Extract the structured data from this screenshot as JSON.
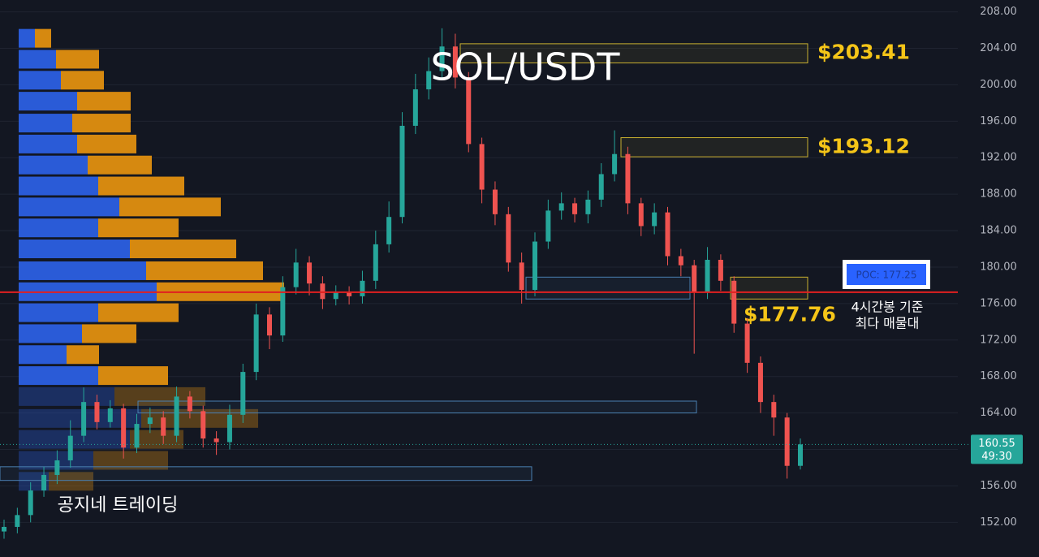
{
  "chart_data": {
    "type": "candlestick",
    "title": "SOL/USDT",
    "watermark": "공지네 트레이딩",
    "ylim": [
      148.2,
      209.3
    ],
    "yticks": [
      {
        "value": 152,
        "label": "152.00"
      },
      {
        "value": 156,
        "label": "156.00"
      },
      {
        "value": 160,
        "label": "160.00"
      },
      {
        "value": 164,
        "label": "164.00"
      },
      {
        "value": 168,
        "label": "168.00"
      },
      {
        "value": 172,
        "label": "172.00"
      },
      {
        "value": 176,
        "label": "176.00"
      },
      {
        "value": 180,
        "label": "180.00"
      },
      {
        "value": 184,
        "label": "184.00"
      },
      {
        "value": 188,
        "label": "188.00"
      },
      {
        "value": 192,
        "label": "192.00"
      },
      {
        "value": 196,
        "label": "196.00"
      },
      {
        "value": 200,
        "label": "200.00"
      },
      {
        "value": 204,
        "label": "204.00"
      },
      {
        "value": 208,
        "label": "208.00"
      }
    ],
    "grid": true,
    "up_color": "#26a69a",
    "down_color": "#ef5350",
    "open": [
      151.0,
      151.5,
      152.8,
      155.5,
      157.2,
      158.8,
      161.5,
      165.2,
      163.0,
      164.5,
      160.2,
      162.8,
      163.5,
      161.5,
      165.8,
      164.2,
      161.2,
      160.8,
      163.8,
      168.5,
      174.8,
      172.5,
      177.8,
      180.5,
      178.2,
      176.5,
      177.2,
      176.8,
      178.5,
      182.5,
      185.5,
      195.5,
      199.5,
      201.5,
      204.2,
      200.8,
      193.5,
      188.5,
      185.8,
      180.5,
      177.5,
      182.8,
      186.2,
      187.0,
      185.8,
      187.4,
      190.2,
      192.4,
      187.0,
      184.5,
      186.0,
      181.2,
      180.2,
      177.2,
      180.8,
      178.5,
      173.8,
      169.5,
      165.2,
      163.5,
      158.2
    ],
    "high": [
      152.3,
      153.6,
      156.4,
      158.1,
      159.9,
      163.2,
      166.8,
      166.0,
      165.4,
      165.0,
      163.9,
      164.6,
      164.2,
      166.9,
      166.4,
      164.8,
      162.0,
      164.9,
      169.4,
      176.0,
      175.6,
      179.0,
      182.0,
      181.2,
      179.0,
      178.0,
      177.9,
      179.6,
      184.0,
      187.2,
      197.0,
      201.2,
      203.0,
      206.2,
      205.6,
      201.4,
      194.2,
      189.4,
      186.6,
      181.6,
      183.8,
      187.4,
      188.2,
      187.6,
      188.4,
      191.4,
      195.0,
      193.2,
      187.6,
      187.0,
      186.6,
      182.0,
      180.8,
      182.2,
      181.4,
      179.0,
      174.4,
      170.2,
      166.0,
      164.0,
      161.2
    ],
    "low": [
      150.2,
      150.8,
      152.0,
      154.8,
      156.2,
      158.0,
      160.8,
      162.2,
      162.4,
      159.0,
      159.6,
      161.8,
      160.6,
      160.8,
      163.4,
      160.2,
      159.4,
      160.0,
      162.9,
      167.6,
      171.0,
      171.8,
      177.0,
      176.9,
      175.4,
      175.8,
      175.9,
      176.0,
      177.6,
      181.6,
      184.8,
      194.6,
      198.4,
      200.8,
      199.6,
      192.6,
      187.0,
      184.6,
      179.5,
      176.0,
      176.8,
      182.0,
      185.2,
      184.9,
      184.8,
      186.6,
      189.4,
      185.8,
      183.4,
      183.6,
      180.2,
      179.0,
      170.5,
      176.5,
      177.4,
      172.8,
      168.4,
      164.0,
      161.5,
      156.8,
      157.8
    ],
    "close": [
      151.5,
      152.8,
      155.5,
      157.2,
      158.8,
      161.5,
      165.2,
      163.0,
      164.5,
      160.2,
      162.8,
      163.5,
      161.5,
      165.8,
      164.2,
      161.2,
      160.8,
      163.8,
      168.5,
      174.8,
      172.5,
      177.8,
      180.5,
      178.2,
      176.5,
      177.2,
      176.8,
      178.5,
      182.5,
      185.5,
      195.5,
      199.5,
      201.5,
      204.2,
      200.8,
      193.5,
      188.5,
      185.8,
      180.5,
      177.5,
      182.8,
      186.2,
      187.0,
      185.8,
      187.4,
      190.2,
      192.4,
      187.0,
      184.5,
      186.0,
      181.2,
      180.2,
      177.2,
      180.8,
      178.5,
      173.8,
      169.5,
      165.2,
      163.5,
      158.2,
      160.55
    ],
    "volume_profile": {
      "levels": [
        205.1,
        202.8,
        200.5,
        198.2,
        195.8,
        193.5,
        191.2,
        188.9,
        186.6,
        184.3,
        182.0,
        179.6,
        177.3,
        175.0,
        172.7,
        170.4,
        168.1,
        165.8,
        163.4,
        161.1,
        158.8,
        156.5
      ],
      "buy": [
        20,
        46,
        52,
        72,
        66,
        72,
        85,
        98,
        124,
        98,
        137,
        157,
        170,
        98,
        78,
        59,
        98,
        118,
        151,
        137,
        92,
        37
      ],
      "sell": [
        20,
        53,
        53,
        66,
        72,
        73,
        79,
        106,
        125,
        99,
        131,
        144,
        157,
        99,
        67,
        40,
        86,
        112,
        144,
        66,
        92,
        55
      ],
      "buy_color": "#2a5bd7",
      "sell_color": "#d68910"
    },
    "zones": [
      {
        "label": "$203.41",
        "top": 204.5,
        "bottom": 202.4,
        "color": "#c9b030"
      },
      {
        "label": "$193.12",
        "top": 194.2,
        "bottom": 192.1,
        "color": "#c9b030"
      },
      {
        "label": "$177.76",
        "top": 178.9,
        "bottom": 176.5,
        "color": "#c9b030"
      },
      {
        "top": 178.9,
        "bottom": 176.5,
        "color": "#4a7fb0"
      },
      {
        "top": 165.3,
        "bottom": 164.0,
        "color": "#4a7fb0"
      },
      {
        "top": 158.1,
        "bottom": 156.6,
        "color": "#4a7fb0"
      }
    ],
    "poc": {
      "value": 177.25,
      "label": "POC: 177.25",
      "note": [
        "4시간봉 기준",
        "최다 매물대"
      ],
      "color": "#e02020"
    },
    "last_price": 160.55,
    "countdown": "49:30"
  }
}
